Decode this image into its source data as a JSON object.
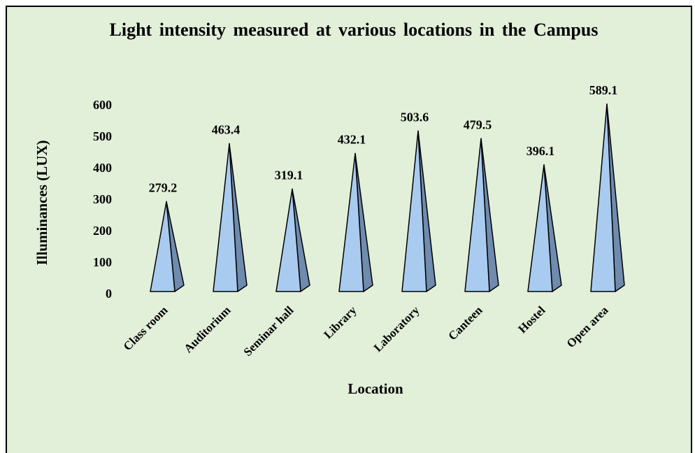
{
  "chart_data": {
    "type": "pyramid",
    "title": "Light intensity measured at various locations in the Campus",
    "x_label": "Location",
    "y_label": "Illuminances (LUX)",
    "categories": [
      "Class room",
      "Auditorium",
      "Seminar hall",
      "Library",
      "Laboratory",
      "Canteen",
      "Hostel",
      "Open area"
    ],
    "values": [
      279.2,
      463.4,
      319.1,
      432.1,
      503.6,
      479.5,
      396.1,
      589.1
    ],
    "color": "#a9cbef",
    "side_color": "#6f8bae",
    "ylim": [
      0,
      600
    ],
    "yticks": [
      0,
      100,
      200,
      300,
      400,
      500,
      600
    ],
    "grid": false
  }
}
